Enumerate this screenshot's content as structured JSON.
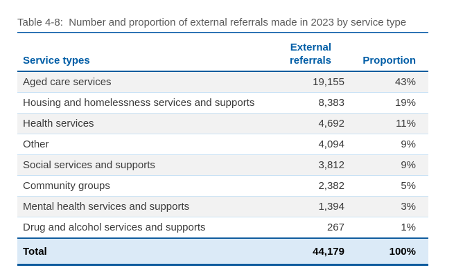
{
  "title": "Table 4-8:  Number and proportion of external referrals made in 2023 by service type",
  "table": {
    "header": {
      "service_types": "Service types",
      "external_referrals": "External referrals",
      "proportion": "Proportion"
    },
    "rows": [
      {
        "service": "Aged care services",
        "referrals": "19,155",
        "proportion": "43%"
      },
      {
        "service": "Housing and homelessness services and supports",
        "referrals": "8,383",
        "proportion": "19%"
      },
      {
        "service": "Health services",
        "referrals": "4,692",
        "proportion": "11%"
      },
      {
        "service": "Other",
        "referrals": "4,094",
        "proportion": "9%"
      },
      {
        "service": "Social services and supports",
        "referrals": "3,812",
        "proportion": "9%"
      },
      {
        "service": "Community groups",
        "referrals": "2,382",
        "proportion": "5%"
      },
      {
        "service": "Mental health services and supports",
        "referrals": "1,394",
        "proportion": "3%"
      },
      {
        "service": "Drug and alcohol services and supports",
        "referrals": "267",
        "proportion": "1%"
      }
    ],
    "total": {
      "label": "Total",
      "referrals": "44,179",
      "proportion": "100%"
    }
  },
  "chart_data": {
    "type": "table",
    "title": "Table 4-8: Number and proportion of external referrals made in 2023 by service type",
    "columns": [
      "Service types",
      "External referrals",
      "Proportion"
    ],
    "categories": [
      "Aged care services",
      "Housing and homelessness services and supports",
      "Health services",
      "Other",
      "Social services and supports",
      "Community groups",
      "Mental health services and supports",
      "Drug and alcohol services and supports"
    ],
    "series": [
      {
        "name": "External referrals",
        "values": [
          19155,
          8383,
          4692,
          4094,
          3812,
          2382,
          1394,
          267
        ]
      },
      {
        "name": "Proportion",
        "values": [
          "43%",
          "19%",
          "11%",
          "9%",
          "9%",
          "5%",
          "3%",
          "1%"
        ]
      }
    ],
    "total": {
      "label": "Total",
      "external_referrals": 44179,
      "proportion": "100%"
    }
  },
  "colors": {
    "title_text": "#595959",
    "title_rule": "#2E74B5",
    "header_text": "#005DA6",
    "border_dark": "#0F5C9E",
    "separator": "#C9E2F5",
    "row_alt": "#F2F2F2",
    "total_bg": "#DBEAF7",
    "body_text": "#3B3B3B",
    "total_text": "#000000"
  }
}
